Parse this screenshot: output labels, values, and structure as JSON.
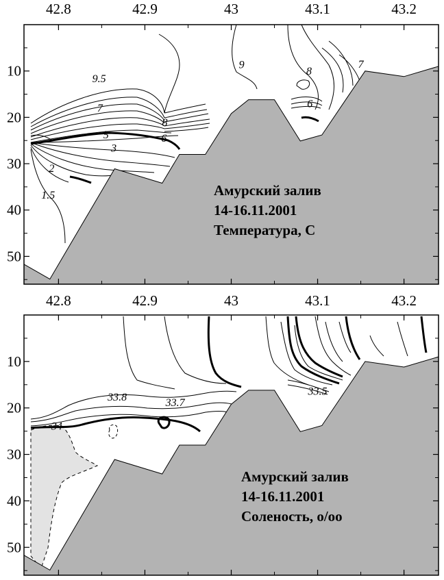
{
  "chart_data": [
    {
      "type": "contour",
      "panel": "top",
      "colors": {
        "bottom_fill": "#b3b3b3",
        "line": "#000000"
      },
      "x_ticks": [
        "42.8",
        "42.9",
        "43",
        "43.1",
        "43.2"
      ],
      "x_tick_values": [
        42.8,
        42.9,
        43.0,
        43.1,
        43.2
      ],
      "y_ticks": [
        "10",
        "20",
        "30",
        "40",
        "50"
      ],
      "y_tick_values": [
        10,
        20,
        30,
        40,
        50
      ],
      "xlim": [
        42.76,
        43.24
      ],
      "ylim": [
        56,
        0
      ],
      "grid": false,
      "title_lines": [
        "Амурский залив",
        "14-16.11.2001",
        "Температура, С"
      ],
      "contour_labels": [
        {
          "text": "9.5",
          "x": 42.847,
          "y": 12.4
        },
        {
          "text": "9",
          "x": 43.012,
          "y": 9.4
        },
        {
          "text": "8",
          "x": 43.09,
          "y": 10.8
        },
        {
          "text": "7",
          "x": 43.15,
          "y": 9.3
        },
        {
          "text": "7",
          "x": 42.848,
          "y": 18.8
        },
        {
          "text": "8",
          "x": 42.923,
          "y": 21.9
        },
        {
          "text": "6",
          "x": 43.091,
          "y": 17.8
        },
        {
          "text": "5",
          "x": 42.855,
          "y": 24.5
        },
        {
          "text": "6",
          "x": 42.922,
          "y": 25.3
        },
        {
          "text": "3",
          "x": 42.864,
          "y": 27.4
        },
        {
          "text": "2",
          "x": 42.792,
          "y": 31.8
        },
        {
          "text": "1.5",
          "x": 42.788,
          "y": 37.5
        }
      ],
      "bottom_profile": [
        [
          42.76,
          51.7
        ],
        [
          42.79,
          54.9
        ],
        [
          42.865,
          31.1
        ],
        [
          42.92,
          34.2
        ],
        [
          42.94,
          28.0
        ],
        [
          42.97,
          28.0
        ],
        [
          43.0,
          19.2
        ],
        [
          43.02,
          16.2
        ],
        [
          43.05,
          16.2
        ],
        [
          43.08,
          25.1
        ],
        [
          43.105,
          23.8
        ],
        [
          43.155,
          10.0
        ],
        [
          43.2,
          11.2
        ],
        [
          43.24,
          9.0
        ]
      ]
    },
    {
      "type": "contour",
      "panel": "bottom",
      "colors": {
        "bottom_fill": "#b3b3b3",
        "high_salinity_fill": "#e3e3e3",
        "line": "#000000"
      },
      "x_ticks": [
        "42.8",
        "42.9",
        "43",
        "43.1",
        "43.2"
      ],
      "x_tick_values": [
        42.8,
        42.9,
        43.0,
        43.1,
        43.2
      ],
      "y_ticks": [
        "10",
        "20",
        "30",
        "40",
        "50"
      ],
      "y_tick_values": [
        10,
        20,
        30,
        40,
        50
      ],
      "xlim": [
        42.76,
        43.24
      ],
      "ylim": [
        56,
        0
      ],
      "grid": false,
      "title_lines": [
        "Амурский залив",
        "14-16.11.2001",
        "Соленость, о/оо"
      ],
      "contour_labels": [
        {
          "text": "33.8",
          "x": 42.868,
          "y": 18.4
        },
        {
          "text": "33.7",
          "x": 42.935,
          "y": 19.6
        },
        {
          "text": "34",
          "x": 42.798,
          "y": 24.7
        },
        {
          "text": "33.5",
          "x": 43.1,
          "y": 17.2
        }
      ],
      "bottom_profile": [
        [
          42.76,
          51.7
        ],
        [
          42.79,
          54.9
        ],
        [
          42.865,
          31.1
        ],
        [
          42.92,
          34.2
        ],
        [
          42.94,
          28.0
        ],
        [
          42.97,
          28.0
        ],
        [
          43.0,
          19.2
        ],
        [
          43.02,
          16.2
        ],
        [
          43.05,
          16.2
        ],
        [
          43.08,
          25.1
        ],
        [
          43.105,
          23.8
        ],
        [
          43.155,
          10.0
        ],
        [
          43.2,
          11.2
        ],
        [
          43.24,
          9.0
        ]
      ]
    }
  ]
}
